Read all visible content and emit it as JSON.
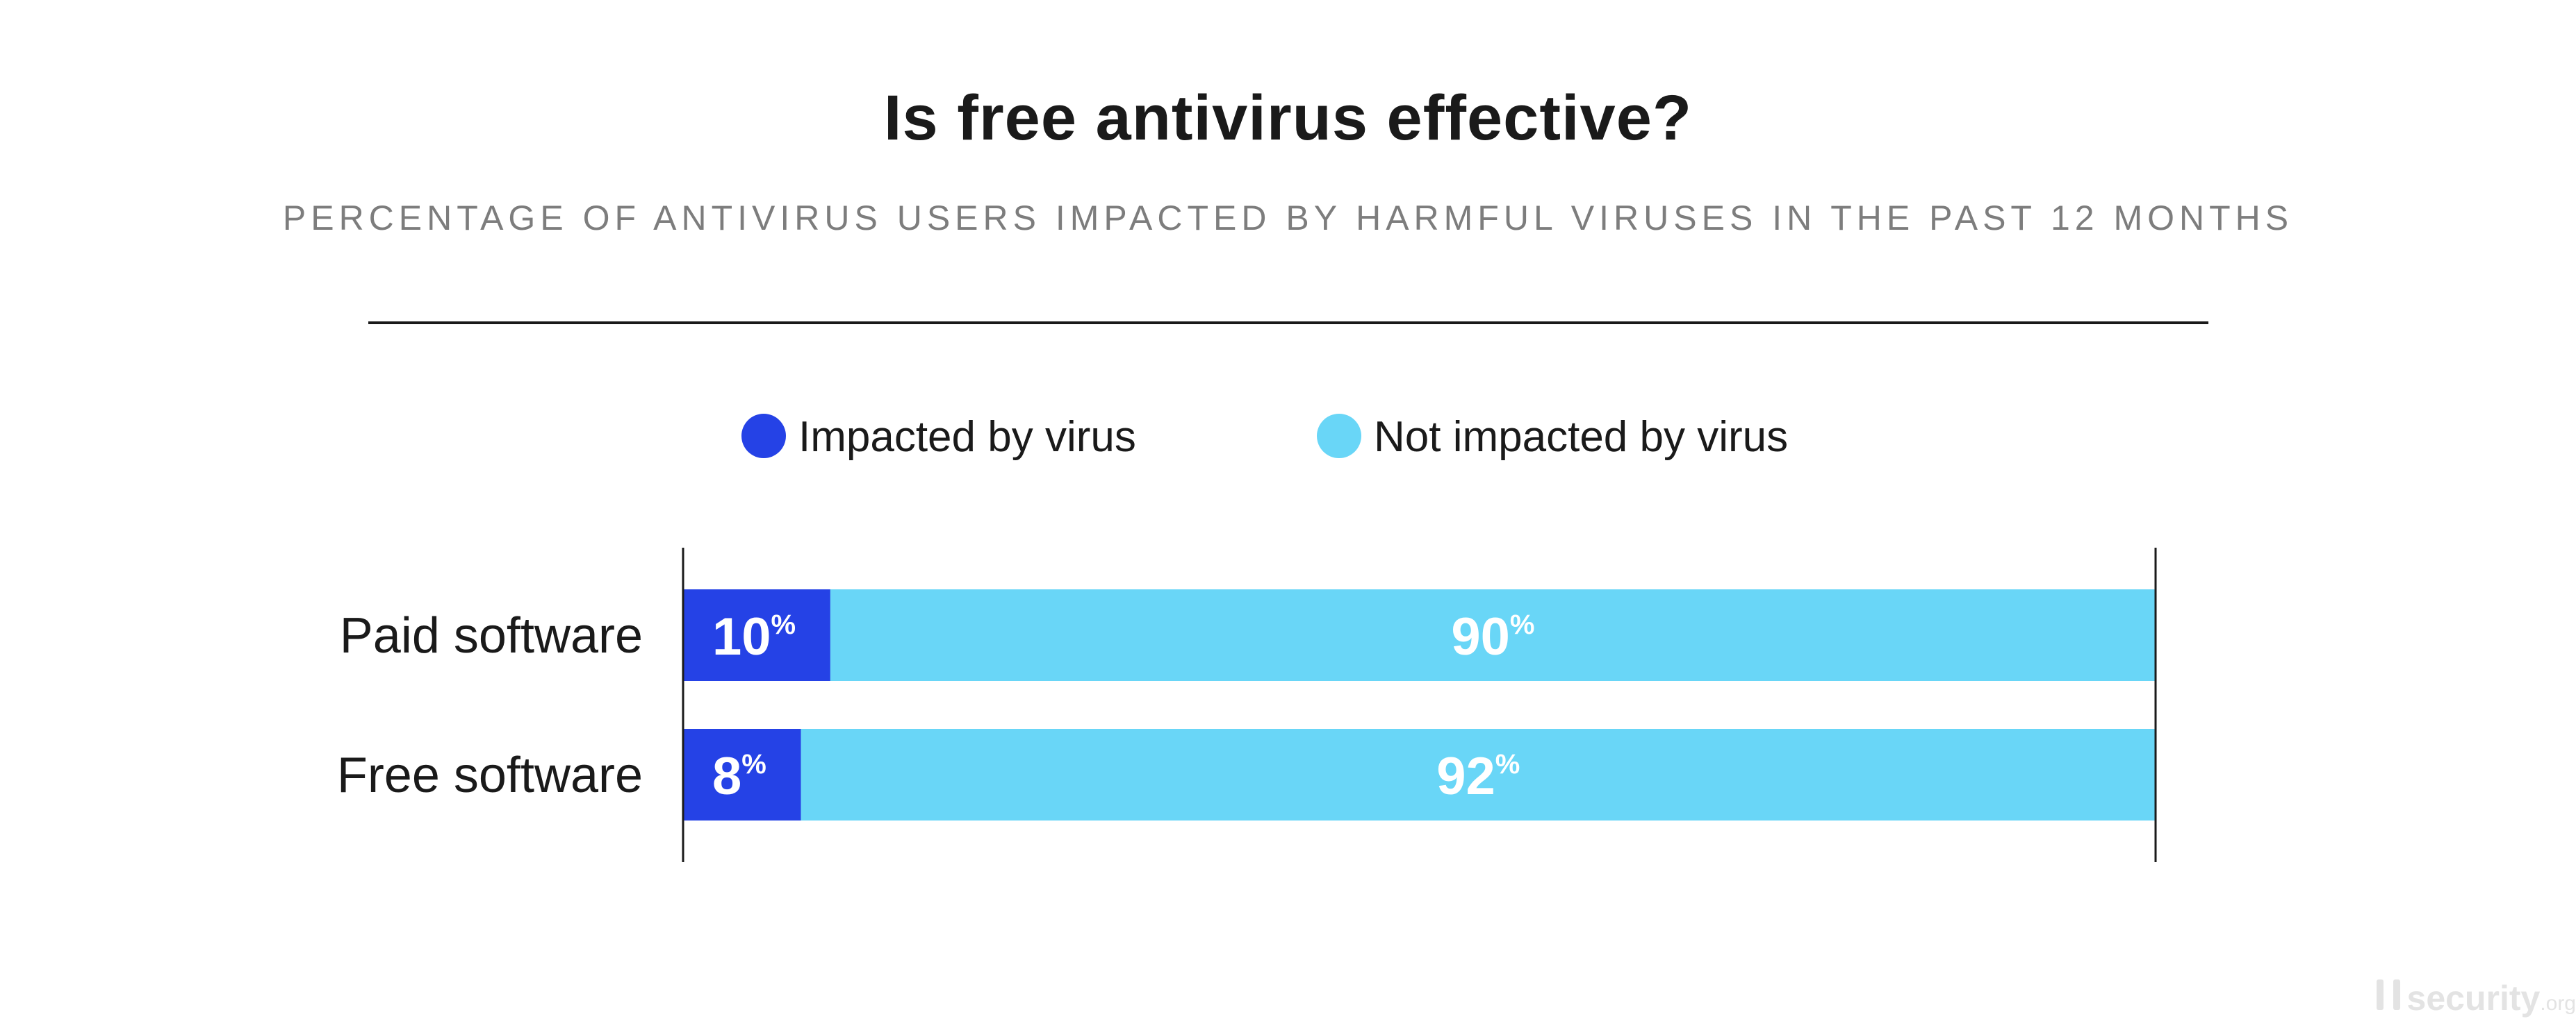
{
  "chart_data": {
    "type": "bar",
    "orientation": "horizontal",
    "stacked": true,
    "title": "Is free antivirus effective?",
    "subtitle": "PERCENTAGE OF ANTIVIRUS USERS IMPACTED BY HARMFUL VIRUSES IN THE PAST 12 MONTHS",
    "categories": [
      "Paid software",
      "Free software"
    ],
    "series": [
      {
        "name": "Impacted by virus",
        "values": [
          10,
          8
        ],
        "color": "#2542e6"
      },
      {
        "name": "Not impacted by virus",
        "values": [
          90,
          92
        ],
        "color": "#69d6f7"
      }
    ],
    "value_suffix": "%",
    "xlim": [
      0,
      100
    ],
    "legend_position": "top",
    "grid": false
  },
  "watermark": {
    "name": "security",
    "tld": ".org",
    "icon": "security-org-logo-icon"
  }
}
